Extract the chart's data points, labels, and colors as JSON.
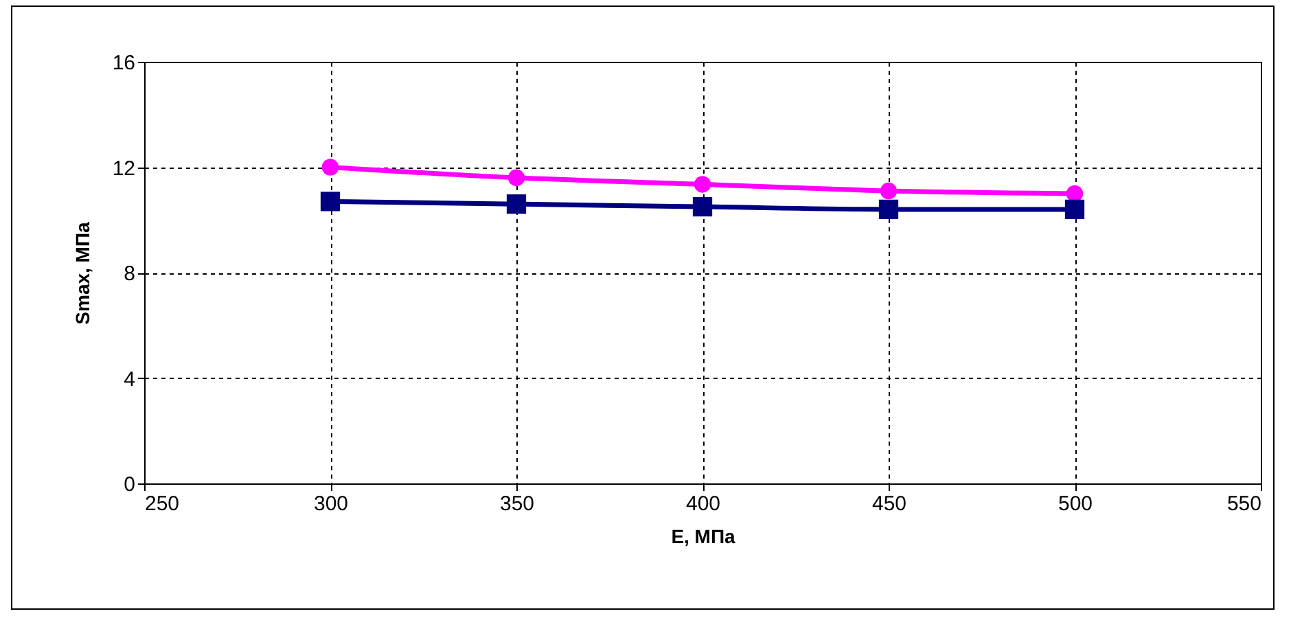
{
  "chart_data": {
    "type": "line",
    "xlabel": "E, МПа",
    "ylabel": "Smax, МПа",
    "x": [
      300,
      350,
      400,
      450,
      500
    ],
    "series": [
      {
        "color": "#ff00ff",
        "marker": "circle",
        "values": [
          12.0,
          11.6,
          11.35,
          11.1,
          11.0
        ]
      },
      {
        "color": "#000080",
        "marker": "square",
        "values": [
          10.7,
          10.6,
          10.5,
          10.4,
          10.4
        ]
      }
    ],
    "xlim": [
      250,
      550
    ],
    "xticks": [
      250,
      300,
      350,
      400,
      450,
      500,
      550
    ],
    "ylim": [
      0,
      16
    ],
    "yticks": [
      0,
      4,
      8,
      12,
      16
    ],
    "grid": true
  }
}
